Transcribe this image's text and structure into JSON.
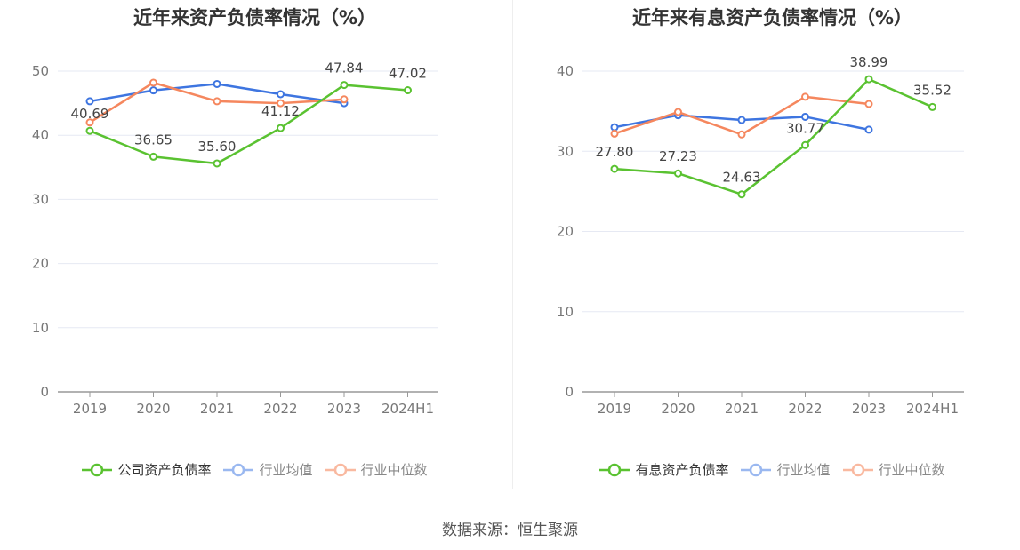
{
  "source": "数据来源：恒生聚源",
  "chart_data": [
    {
      "type": "line",
      "title": "近年来资产负债率情况（%）",
      "categories": [
        "2019",
        "2020",
        "2021",
        "2022",
        "2023",
        "2024H1"
      ],
      "ylim": [
        0,
        50
      ],
      "yticks": [
        "0",
        "10",
        "20",
        "30",
        "40",
        "50"
      ],
      "grid": true,
      "legend_position": "bottom",
      "series": [
        {
          "name": "公司资产负债率",
          "color": "#5ac231",
          "values": [
            40.69,
            36.65,
            35.6,
            41.12,
            47.84,
            47.02
          ],
          "labels": [
            "40.69",
            "36.65",
            "35.60",
            "41.12",
            "47.84",
            "47.02"
          ]
        },
        {
          "name": "行业均值",
          "color": "#3e75e0",
          "values": [
            45.3,
            47.0,
            48.0,
            46.4,
            45.0,
            null
          ],
          "labels": []
        },
        {
          "name": "行业中位数",
          "color": "#f5875e",
          "values": [
            42.0,
            48.2,
            45.3,
            45.0,
            45.6,
            null
          ],
          "labels": []
        }
      ]
    },
    {
      "type": "line",
      "title": "近年来有息资产负债率情况（%）",
      "categories": [
        "2019",
        "2020",
        "2021",
        "2022",
        "2023",
        "2024H1"
      ],
      "ylim": [
        0,
        40
      ],
      "yticks": [
        "0",
        "10",
        "20",
        "30",
        "40"
      ],
      "grid": true,
      "legend_position": "bottom",
      "series": [
        {
          "name": "有息资产负债率",
          "color": "#5ac231",
          "values": [
            27.8,
            27.23,
            24.63,
            30.77,
            38.99,
            35.52
          ],
          "labels": [
            "27.80",
            "27.23",
            "24.63",
            "30.77",
            "38.99",
            "35.52"
          ]
        },
        {
          "name": "行业均值",
          "color": "#3e75e0",
          "values": [
            33.0,
            34.5,
            33.9,
            34.3,
            32.7,
            null
          ],
          "labels": []
        },
        {
          "name": "行业中位数",
          "color": "#f5875e",
          "values": [
            32.2,
            34.9,
            32.1,
            36.8,
            35.9,
            null
          ],
          "labels": []
        }
      ]
    }
  ]
}
